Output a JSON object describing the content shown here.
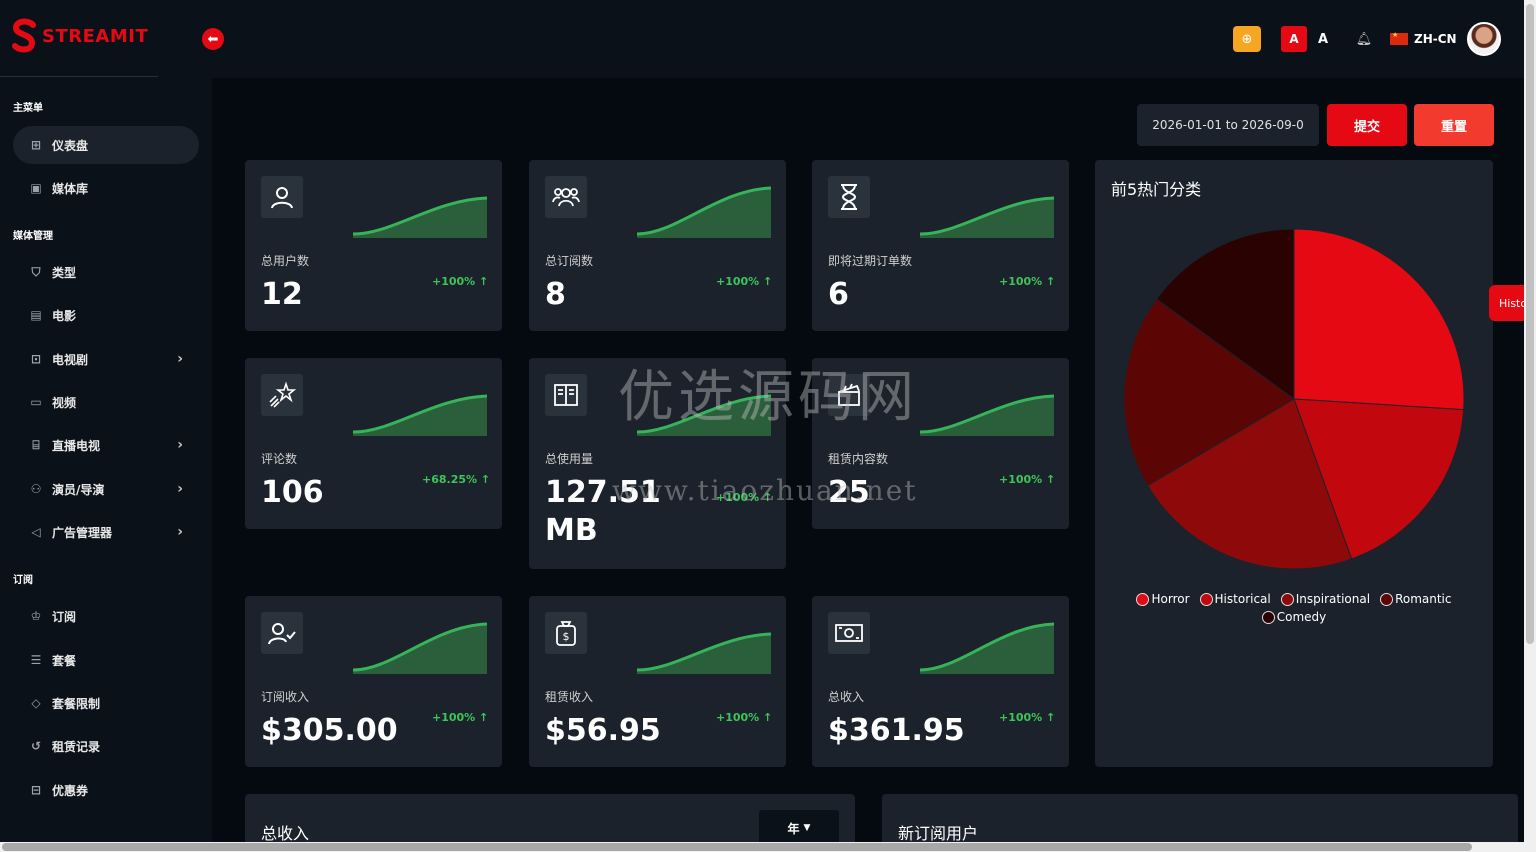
{
  "brand": {
    "name": "STREAMIT"
  },
  "topbar": {
    "font_a_red": "A",
    "font_a": "A",
    "language": "ZH-CN"
  },
  "sidebar": {
    "sections": [
      {
        "label": "主菜单",
        "items": [
          {
            "label": "仪表盘",
            "icon": "dashboard-icon",
            "active": true,
            "chevron": false
          },
          {
            "label": "媒体库",
            "icon": "image-icon",
            "active": false,
            "chevron": false
          }
        ]
      },
      {
        "label": "媒体管理",
        "items": [
          {
            "label": "类型",
            "icon": "shield-icon",
            "chevron": false
          },
          {
            "label": "电影",
            "icon": "film-icon",
            "chevron": false
          },
          {
            "label": "电视剧",
            "icon": "play-icon",
            "chevron": true
          },
          {
            "label": "视频",
            "icon": "video-icon",
            "chevron": false
          },
          {
            "label": "直播电视",
            "icon": "tv-icon",
            "chevron": true
          },
          {
            "label": "演员/导演",
            "icon": "users-icon",
            "chevron": true
          },
          {
            "label": "广告管理器",
            "icon": "megaphone-icon",
            "chevron": true
          }
        ]
      },
      {
        "label": "订阅",
        "items": [
          {
            "label": "订阅",
            "icon": "crown-icon",
            "chevron": false
          },
          {
            "label": "套餐",
            "icon": "list-icon",
            "chevron": false
          },
          {
            "label": "套餐限制",
            "icon": "tag-icon",
            "chevron": false
          },
          {
            "label": "租赁记录",
            "icon": "history-icon",
            "chevron": false
          },
          {
            "label": "优惠券",
            "icon": "ticket-icon",
            "chevron": false
          }
        ]
      }
    ]
  },
  "filters": {
    "date_range": "2026-01-01 to 2026-09-0",
    "submit": "提交",
    "reset": "重置"
  },
  "stats": [
    {
      "label": "总用户数",
      "value": "12",
      "delta": "+100%",
      "icon": "user-icon"
    },
    {
      "label": "总订阅数",
      "value": "8",
      "delta": "+100%",
      "icon": "group-icon"
    },
    {
      "label": "即将过期订单数",
      "value": "6",
      "delta": "+100%",
      "icon": "hourglass-icon"
    },
    {
      "label": "评论数",
      "value": "106",
      "delta": "+68.25%",
      "icon": "star-icon"
    },
    {
      "label": "总使用量",
      "value": "127.51 MB",
      "delta": "+100%",
      "icon": "book-icon"
    },
    {
      "label": "租赁内容数",
      "value": "25",
      "delta": "+100%",
      "icon": "clapper-icon"
    },
    {
      "label": "订阅收入",
      "value": "$305.00",
      "delta": "+100%",
      "icon": "user-check-icon"
    },
    {
      "label": "租赁收入",
      "value": "$56.95",
      "delta": "+100%",
      "icon": "money-bag-icon"
    },
    {
      "label": "总收入",
      "value": "$361.95",
      "delta": "+100%",
      "icon": "banknote-icon"
    }
  ],
  "chart_data": {
    "type": "pie",
    "title": "前5热门分类",
    "categories": [
      "Horror",
      "Historical",
      "Inspirational",
      "Romantic",
      "Comedy"
    ],
    "values": [
      26,
      18.5,
      22,
      18.5,
      15
    ],
    "colors": [
      "#e50914",
      "#c3070f",
      "#8e0a0a",
      "#5c0505",
      "#2b0202"
    ],
    "legend": "bottom"
  },
  "panels": {
    "revenue_title": "总收入",
    "year_select": "年",
    "new_subscribers_title": "新订阅用户"
  },
  "history_tab": "Histo",
  "watermark": {
    "line1": "优选源码网",
    "line2": "www.tiaozhuan.net"
  }
}
